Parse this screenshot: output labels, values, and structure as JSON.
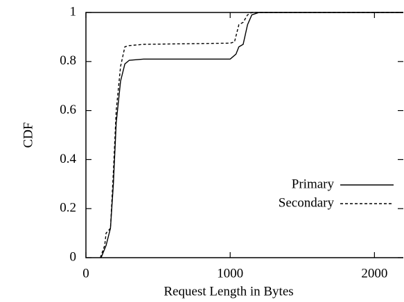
{
  "chart_data": {
    "type": "line",
    "xlabel": "Request Length in Bytes",
    "ylabel": "CDF",
    "xlim": [
      0,
      2200
    ],
    "ylim": [
      0,
      1
    ],
    "xticks": [
      0,
      1000,
      2000
    ],
    "yticks": [
      0,
      0.2,
      0.4,
      0.6,
      0.8,
      1
    ],
    "legend": "lower right",
    "series": [
      {
        "name": "Primary",
        "color": "#000000",
        "dash": "solid",
        "x": [
          105,
          140,
          170,
          190,
          210,
          240,
          270,
          300,
          400,
          1000,
          1040,
          1060,
          1090,
          1120,
          1150,
          1200,
          2200
        ],
        "values": [
          0,
          0.05,
          0.12,
          0.3,
          0.55,
          0.72,
          0.79,
          0.805,
          0.81,
          0.81,
          0.83,
          0.86,
          0.87,
          0.95,
          0.99,
          1,
          1
        ]
      },
      {
        "name": "Secondary",
        "color": "#000000",
        "dash": "dashed",
        "x": [
          100,
          130,
          140,
          170,
          190,
          210,
          240,
          270,
          300,
          400,
          1000,
          1030,
          1060,
          1090,
          1120,
          1150,
          2200
        ],
        "values": [
          0,
          0.05,
          0.1,
          0.12,
          0.35,
          0.6,
          0.78,
          0.86,
          0.865,
          0.87,
          0.875,
          0.88,
          0.95,
          0.96,
          0.99,
          1,
          1
        ]
      }
    ]
  }
}
